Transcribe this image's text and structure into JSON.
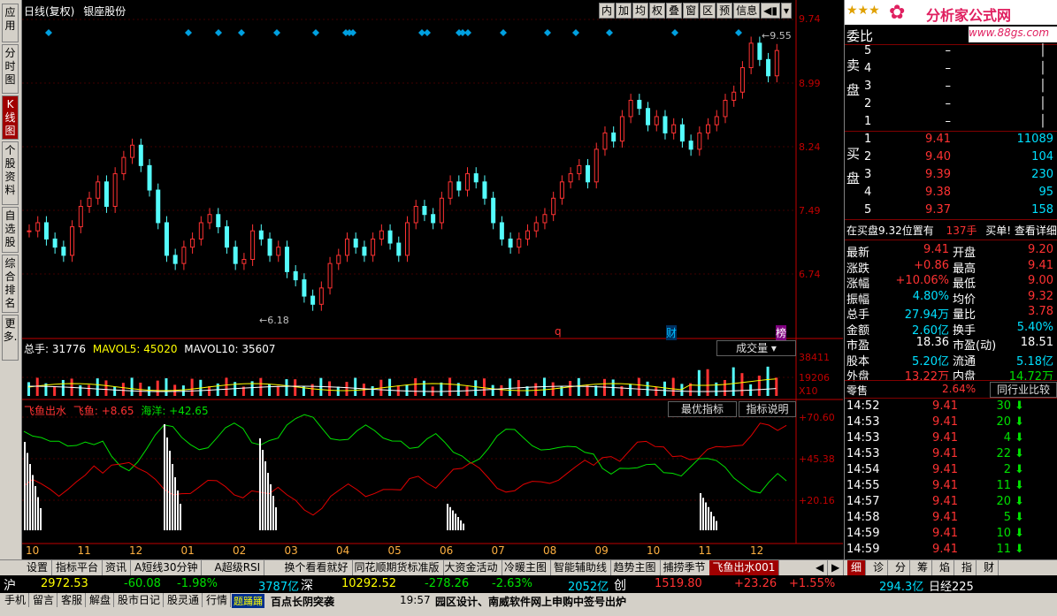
{
  "left_tabs": [
    {
      "label": "应用",
      "active": false
    },
    {
      "label": "分时图",
      "active": false
    },
    {
      "label": "K线图",
      "active": true
    },
    {
      "label": "个股资料",
      "active": false
    },
    {
      "label": "自选股",
      "active": false
    },
    {
      "label": "综合排名",
      "active": false
    },
    {
      "label": "更多.",
      "active": false
    }
  ],
  "header": {
    "title": "日线(复权)",
    "stock_name": "银座股份"
  },
  "toolbar": [
    "内",
    "加",
    "均",
    "权",
    "叠",
    "窗",
    "区",
    "预",
    "信息"
  ],
  "brand": {
    "stars": "★★★",
    "logo_text": "分析家公式网",
    "url": "www.88gs.com"
  },
  "price_axis": [
    "9.74",
    "8.99",
    "8.24",
    "7.49",
    "6.74"
  ],
  "annotations": {
    "high": "9.55",
    "low": "6.18",
    "marker_q": "q",
    "marker_cai": "财",
    "marker_bang": "榜"
  },
  "volume": {
    "title": "总手: 31776",
    "mavol5": "MAVOL5: 45020",
    "mavol10": "MAVOL10: 35607",
    "button": "成交量",
    "axis": [
      "38411",
      "19206",
      "X10"
    ]
  },
  "indicator": {
    "title": "飞鱼出水",
    "fly": "飞鱼: +8.65",
    "sea": "海洋: +42.65",
    "btn_best": "最优指标",
    "btn_explain": "指标说明",
    "axis": [
      "+70.60",
      "+45.38",
      "+20.16"
    ]
  },
  "months": [
    "10",
    "11",
    "12",
    "01",
    "02",
    "03",
    "04",
    "05",
    "06",
    "07",
    "08",
    "09",
    "10",
    "11",
    "12"
  ],
  "chart_data": {
    "type": "candlestick",
    "ylim": [
      6.18,
      9.55
    ],
    "closes": [
      7.2,
      7.3,
      7.1,
      7.0,
      6.9,
      7.25,
      7.5,
      7.6,
      7.8,
      7.5,
      7.9,
      8.1,
      8.25,
      8.0,
      7.7,
      7.3,
      6.9,
      6.8,
      7.0,
      7.1,
      7.3,
      7.4,
      7.25,
      7.0,
      6.8,
      6.85,
      7.2,
      7.1,
      6.9,
      7.0,
      6.7,
      6.6,
      6.4,
      6.3,
      6.5,
      6.8,
      6.9,
      7.1,
      7.0,
      6.9,
      7.1,
      7.2,
      7.05,
      6.9,
      7.3,
      7.5,
      7.4,
      7.3,
      7.6,
      7.8,
      7.7,
      7.9,
      7.8,
      7.6,
      7.3,
      7.1,
      7.0,
      7.1,
      7.2,
      7.3,
      7.4,
      7.6,
      7.8,
      7.9,
      8.0,
      7.8,
      8.2,
      8.4,
      8.3,
      8.6,
      8.8,
      8.7,
      8.5,
      8.6,
      8.4,
      8.5,
      8.3,
      8.2,
      8.4,
      8.5,
      8.6,
      8.8,
      8.9,
      9.2,
      9.5,
      9.3,
      9.1,
      9.41
    ],
    "volume_max": 38411,
    "indicator_range": [
      20.16,
      70.6
    ]
  },
  "quote_panel": {
    "title": "委比",
    "sell_label": "卖盘",
    "buy_label": "买盘",
    "sells": [
      {
        "lv": "5",
        "p": "–",
        "v": ""
      },
      {
        "lv": "4",
        "p": "–",
        "v": ""
      },
      {
        "lv": "3",
        "p": "–",
        "v": ""
      },
      {
        "lv": "2",
        "p": "–",
        "v": ""
      },
      {
        "lv": "1",
        "p": "–",
        "v": ""
      }
    ],
    "buys": [
      {
        "lv": "1",
        "p": "9.41",
        "v": "11089"
      },
      {
        "lv": "2",
        "p": "9.40",
        "v": "104"
      },
      {
        "lv": "3",
        "p": "9.39",
        "v": "230"
      },
      {
        "lv": "4",
        "p": "9.38",
        "v": "95"
      },
      {
        "lv": "5",
        "p": "9.37",
        "v": "158"
      }
    ],
    "notice": "在买盘9.32位置有",
    "notice_qty": "137手",
    "notice_tail": "买单! 查看详细",
    "stats": [
      [
        "最新",
        "9.41",
        "red",
        "开盘",
        "9.20",
        "red"
      ],
      [
        "涨跌",
        "+0.86",
        "red",
        "最高",
        "9.41",
        "red"
      ],
      [
        "涨幅",
        "+10.06%",
        "red",
        "最低",
        "9.00",
        "red"
      ],
      [
        "振幅",
        "4.80%",
        "cyan",
        "均价",
        "9.32",
        "red"
      ],
      [
        "总手",
        "27.94万",
        "cyan",
        "量比",
        "3.78",
        "red"
      ],
      [
        "金额",
        "2.60亿",
        "cyan",
        "换手",
        "5.40%",
        "cyan"
      ],
      [
        "市盈",
        "18.36",
        "white",
        "市盈(动)",
        "18.51",
        "white"
      ],
      [
        "股本",
        "5.20亿",
        "cyan",
        "流通",
        "5.18亿",
        "cyan"
      ],
      [
        "外盘",
        "13.22万",
        "red",
        "内盘",
        "14.72万",
        "green"
      ]
    ],
    "industry": "零售",
    "industry_pct": "2.64%",
    "industry_btn": "同行业比较",
    "ticks": [
      [
        "14:52",
        "9.41",
        "30"
      ],
      [
        "14:53",
        "9.41",
        "20"
      ],
      [
        "14:53",
        "9.41",
        "4"
      ],
      [
        "14:53",
        "9.41",
        "22"
      ],
      [
        "14:54",
        "9.41",
        "2"
      ],
      [
        "14:55",
        "9.41",
        "11"
      ],
      [
        "14:57",
        "9.41",
        "20"
      ],
      [
        "14:58",
        "9.41",
        "5"
      ],
      [
        "14:59",
        "9.41",
        "10"
      ],
      [
        "14:59",
        "9.41",
        "11"
      ]
    ]
  },
  "bottom_tabs": [
    "设置",
    "指标平台",
    "资讯",
    "A短线30分钟",
    "A超级RSI",
    "换个看看就好",
    "同花顺期货标准版",
    "大资金活动",
    "冷暖主图",
    "智能辅助线",
    "趋势主图",
    "捕捞季节",
    "飞鱼出水001"
  ],
  "right_tabs": [
    "细",
    "诊",
    "分",
    "筹",
    "焰",
    "指",
    "财"
  ],
  "index_bar": {
    "sh_label": "沪",
    "sh_val": "2972.53",
    "sh_chg": "-60.08",
    "sh_pct": "-1.98%",
    "sh_amt": "3787亿",
    "sz_label": "深",
    "sz_val": "10292.52",
    "sz_chg": "-278.26",
    "sz_pct": "-2.63%",
    "sz_amt": "2052亿",
    "cy_label": "创",
    "cy_val": "1519.80",
    "cy_chg": "+23.26",
    "cy_pct": "+1.55%",
    "cy_amt": "294.3亿",
    "rj": "日经225"
  },
  "status_items": [
    "手机",
    "留言",
    "客服",
    "解盘",
    "股市日记",
    "股灵通",
    "行情"
  ],
  "ticker": "百点长阴突袭",
  "ticker_badge": "题踊踊",
  "time": "19:57",
  "news": "园区设计、南威软件网上申购中签号出炉"
}
